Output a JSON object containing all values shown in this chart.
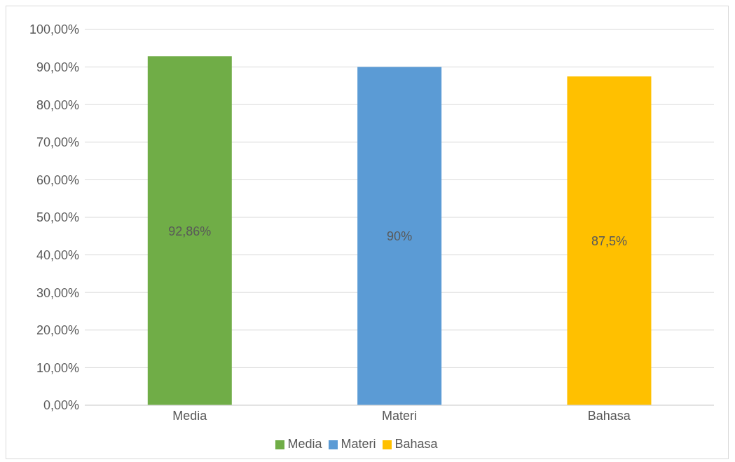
{
  "chart_data": {
    "type": "bar",
    "categories": [
      "Media",
      "Materi",
      "Bahasa"
    ],
    "stacked": true,
    "series": [
      {
        "name": "Media",
        "color": "#70ad47",
        "values": [
          92.86,
          null,
          null
        ],
        "value_labels": [
          "92,86%",
          null,
          null
        ]
      },
      {
        "name": "Materi",
        "color": "#5b9bd5",
        "values": [
          null,
          90,
          null
        ],
        "value_labels": [
          null,
          "90%",
          null
        ]
      },
      {
        "name": "Bahasa",
        "color": "#ffc000",
        "values": [
          null,
          null,
          87.5
        ],
        "value_labels": [
          null,
          null,
          "87,5%"
        ]
      }
    ],
    "ylim": [
      0,
      100
    ],
    "yticks": [
      {
        "value": 0,
        "label": "0,00%"
      },
      {
        "value": 10,
        "label": "10,00%"
      },
      {
        "value": 20,
        "label": "20,00%"
      },
      {
        "value": 30,
        "label": "30,00%"
      },
      {
        "value": 40,
        "label": "40,00%"
      },
      {
        "value": 50,
        "label": "50,00%"
      },
      {
        "value": 60,
        "label": "60,00%"
      },
      {
        "value": 70,
        "label": "70,00%"
      },
      {
        "value": 80,
        "label": "80,00%"
      },
      {
        "value": 90,
        "label": "90,00%"
      },
      {
        "value": 100,
        "label": "100,00%"
      }
    ],
    "grid": "y",
    "legend": "bottom"
  }
}
